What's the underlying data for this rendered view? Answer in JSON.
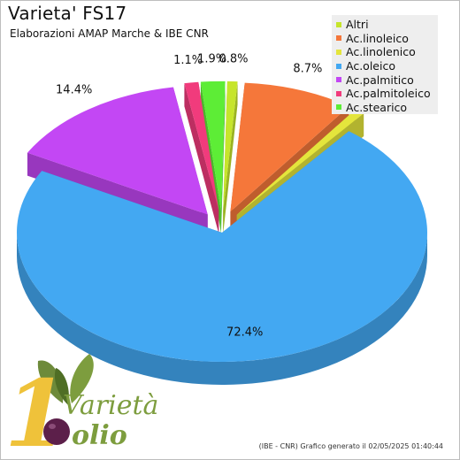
{
  "header": {
    "title": "Varieta' FS17",
    "subtitle": "Elaborazioni AMAP Marche & IBE CNR"
  },
  "footer": {
    "note": "(IBE - CNR) Grafico generato il 02/05/2025 01:40:44"
  },
  "logo": {
    "word_top": "Varietà",
    "word_bottom": "olio",
    "big_numeral": "1"
  },
  "colors": {
    "Altri": "#c6e52b",
    "Ac.linoleico": "#f5773a",
    "Ac.linolenico": "#e4e53c",
    "Ac.oleico": "#43a8f2",
    "Ac.palmitico": "#c347f4",
    "Ac.palmitoleico": "#f13b7c",
    "Ac.stearico": "#5ded36"
  },
  "chart_data": {
    "type": "pie",
    "style": "3d-exploded",
    "title": "Varieta' FS17",
    "subtitle": "Elaborazioni AMAP Marche & IBE CNR",
    "legend_position": "top-right",
    "slices": [
      {
        "label": "Altri",
        "value": 0.8,
        "display": "0.8%"
      },
      {
        "label": "Ac.linoleico",
        "value": 8.7,
        "display": "8.7%"
      },
      {
        "label": "Ac.linolenico",
        "value": 0.8,
        "display": "0.8%"
      },
      {
        "label": "Ac.oleico",
        "value": 72.4,
        "display": "72.4%"
      },
      {
        "label": "Ac.palmitico",
        "value": 14.4,
        "display": "14.4%"
      },
      {
        "label": "Ac.palmitoleico",
        "value": 1.1,
        "display": "1.1%"
      },
      {
        "label": "Ac.stearico",
        "value": 1.9,
        "display": "1.9%"
      }
    ]
  }
}
